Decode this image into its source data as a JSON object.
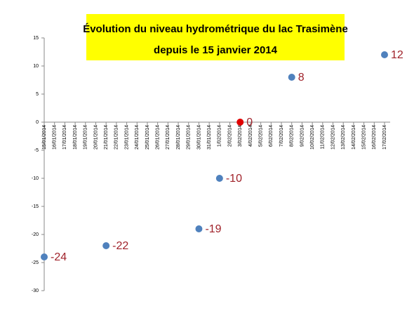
{
  "chart_data": {
    "type": "dot",
    "title": [
      "Évolution du niveau  hydrométrique du lac Trasimène",
      "depuis le 15 janvier 2014"
    ],
    "categories": [
      "15/01/2014",
      "16/01/2014",
      "17/01/2014",
      "18/01/2014",
      "19/01/2014",
      "20/01/2014",
      "21/01/2014",
      "22/01/2014",
      "23/01/2014",
      "24/01/2014",
      "25/01/2014",
      "26/01/2014",
      "27/01/2014",
      "28/01/2014",
      "29/01/2014",
      "30/01/2014",
      "31/01/2014",
      "1/02/2014",
      "2/02/2014",
      "3/02/2014",
      "4/02/2014",
      "5/02/2014",
      "6/02/2014",
      "7/02/2014",
      "8/02/2014",
      "9/02/2014",
      "10/02/2014",
      "11/02/2014",
      "12/02/2014",
      "13/02/2014",
      "14/02/2014",
      "15/02/2014",
      "16/02/2014",
      "17/02/2014"
    ],
    "values": [
      -24,
      null,
      null,
      null,
      null,
      null,
      -22,
      null,
      null,
      null,
      null,
      null,
      null,
      null,
      null,
      -19,
      null,
      -10,
      null,
      0,
      null,
      null,
      null,
      null,
      8,
      null,
      null,
      null,
      null,
      null,
      null,
      null,
      null,
      12
    ],
    "marker_colors": [
      "#4f81bd",
      null,
      null,
      null,
      null,
      null,
      "#4f81bd",
      null,
      null,
      null,
      null,
      null,
      null,
      null,
      null,
      "#4f81bd",
      null,
      "#4f81bd",
      null,
      "#e00000",
      null,
      null,
      null,
      null,
      "#4f81bd",
      null,
      null,
      null,
      null,
      null,
      null,
      null,
      null,
      "#4f81bd"
    ],
    "label_color": "#a0222a",
    "title_background": "#ffff00",
    "ylim": [
      -30,
      15
    ],
    "yticks": [
      -30,
      -25,
      -20,
      -15,
      -10,
      -5,
      0,
      5,
      10,
      15
    ],
    "grid": false
  }
}
